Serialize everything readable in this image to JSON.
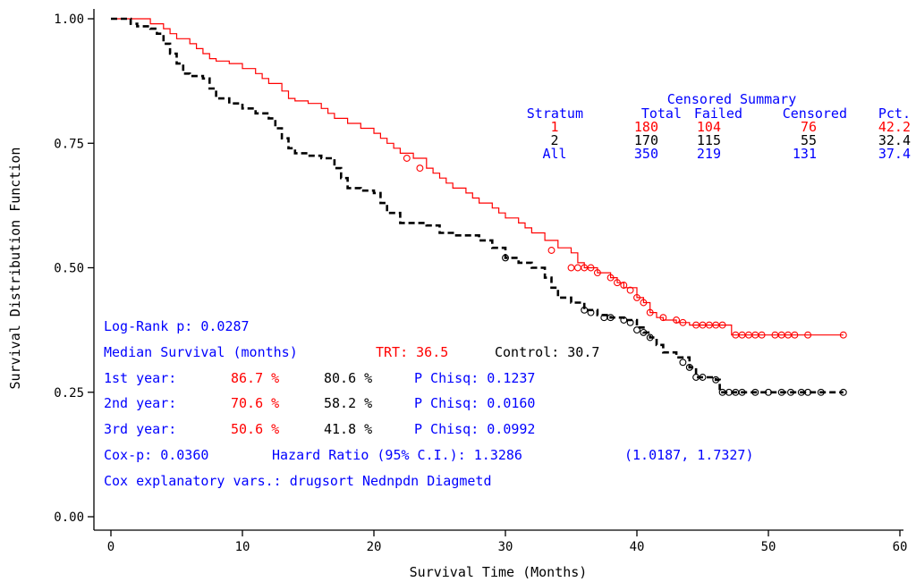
{
  "colors": {
    "trt": "#ff0000",
    "control": "#000000",
    "text_blue": "#0000ff",
    "axis": "#000000"
  },
  "chart_data": {
    "type": "line",
    "xlabel": "Survival Time (Months)",
    "ylabel": "Survival Distribution Function",
    "xlim": [
      0,
      60
    ],
    "ylim": [
      0,
      1
    ],
    "x_ticks": [
      0,
      10,
      20,
      30,
      40,
      50,
      60
    ],
    "y_ticks": [
      "0.00",
      "0.25",
      "0.50",
      "0.75",
      "1.00"
    ],
    "y_tick_values": [
      0,
      0.25,
      0.5,
      0.75,
      1.0
    ],
    "grid": false,
    "series": [
      {
        "stratum": "1",
        "color": "#ff0000",
        "dash": false,
        "steps": [
          [
            0,
            1.0
          ],
          [
            2.5,
            1.0
          ],
          [
            3,
            0.99
          ],
          [
            4,
            0.98
          ],
          [
            4.5,
            0.97
          ],
          [
            5,
            0.96
          ],
          [
            6,
            0.95
          ],
          [
            6.5,
            0.94
          ],
          [
            7,
            0.93
          ],
          [
            7.5,
            0.92
          ],
          [
            8,
            0.915
          ],
          [
            9,
            0.91
          ],
          [
            10,
            0.9
          ],
          [
            11,
            0.89
          ],
          [
            11.5,
            0.88
          ],
          [
            12,
            0.87
          ],
          [
            13,
            0.855
          ],
          [
            13.5,
            0.84
          ],
          [
            14,
            0.835
          ],
          [
            15,
            0.83
          ],
          [
            16,
            0.82
          ],
          [
            16.5,
            0.81
          ],
          [
            17,
            0.8
          ],
          [
            18,
            0.79
          ],
          [
            19,
            0.78
          ],
          [
            20,
            0.77
          ],
          [
            20.5,
            0.76
          ],
          [
            21,
            0.75
          ],
          [
            21.5,
            0.74
          ],
          [
            22,
            0.73
          ],
          [
            23,
            0.72
          ],
          [
            24,
            0.7
          ],
          [
            24.5,
            0.69
          ],
          [
            25,
            0.68
          ],
          [
            25.5,
            0.67
          ],
          [
            26,
            0.66
          ],
          [
            27,
            0.65
          ],
          [
            27.5,
            0.64
          ],
          [
            28,
            0.63
          ],
          [
            29,
            0.62
          ],
          [
            29.5,
            0.61
          ],
          [
            30,
            0.6
          ],
          [
            31,
            0.59
          ],
          [
            31.5,
            0.58
          ],
          [
            32,
            0.57
          ],
          [
            33,
            0.555
          ],
          [
            34,
            0.54
          ],
          [
            35,
            0.53
          ],
          [
            35.5,
            0.51
          ],
          [
            36,
            0.5
          ],
          [
            37,
            0.49
          ],
          [
            38,
            0.48
          ],
          [
            38.5,
            0.47
          ],
          [
            39,
            0.46
          ],
          [
            40,
            0.44
          ],
          [
            40.5,
            0.43
          ],
          [
            41,
            0.41
          ],
          [
            41.5,
            0.4
          ],
          [
            42,
            0.395
          ],
          [
            43,
            0.39
          ],
          [
            44,
            0.385
          ],
          [
            45,
            0.385
          ],
          [
            46,
            0.385
          ],
          [
            47,
            0.385
          ],
          [
            47.2,
            0.365
          ],
          [
            55.7,
            0.365
          ]
        ],
        "censored": [
          [
            22.5,
            0.72
          ],
          [
            23.5,
            0.7
          ],
          [
            33.5,
            0.535
          ],
          [
            35,
            0.5
          ],
          [
            35.5,
            0.5
          ],
          [
            36,
            0.5
          ],
          [
            36.5,
            0.5
          ],
          [
            37,
            0.49
          ],
          [
            38,
            0.48
          ],
          [
            38.5,
            0.47
          ],
          [
            39,
            0.465
          ],
          [
            39.5,
            0.455
          ],
          [
            40,
            0.44
          ],
          [
            40.5,
            0.43
          ],
          [
            41,
            0.41
          ],
          [
            42,
            0.4
          ],
          [
            43,
            0.395
          ],
          [
            43.5,
            0.39
          ],
          [
            44.5,
            0.385
          ],
          [
            45,
            0.385
          ],
          [
            45.5,
            0.385
          ],
          [
            46,
            0.385
          ],
          [
            46.5,
            0.385
          ],
          [
            47.5,
            0.365
          ],
          [
            48,
            0.365
          ],
          [
            48.5,
            0.365
          ],
          [
            49,
            0.365
          ],
          [
            49.5,
            0.365
          ],
          [
            50.5,
            0.365
          ],
          [
            51,
            0.365
          ],
          [
            51.5,
            0.365
          ],
          [
            52,
            0.365
          ],
          [
            53,
            0.365
          ],
          [
            55.7,
            0.365
          ]
        ]
      },
      {
        "stratum": "2",
        "color": "#000000",
        "dash": true,
        "steps": [
          [
            0,
            1.0
          ],
          [
            1,
            1.0
          ],
          [
            1.5,
            0.99
          ],
          [
            2,
            0.985
          ],
          [
            3,
            0.98
          ],
          [
            3.5,
            0.97
          ],
          [
            4,
            0.95
          ],
          [
            4.5,
            0.93
          ],
          [
            5,
            0.91
          ],
          [
            5.5,
            0.89
          ],
          [
            6,
            0.885
          ],
          [
            7,
            0.88
          ],
          [
            7.5,
            0.86
          ],
          [
            8,
            0.84
          ],
          [
            9,
            0.83
          ],
          [
            10,
            0.82
          ],
          [
            11,
            0.81
          ],
          [
            12,
            0.8
          ],
          [
            12.5,
            0.78
          ],
          [
            13,
            0.76
          ],
          [
            13.5,
            0.74
          ],
          [
            14,
            0.73
          ],
          [
            15,
            0.725
          ],
          [
            16,
            0.72
          ],
          [
            17,
            0.7
          ],
          [
            17.5,
            0.68
          ],
          [
            18,
            0.66
          ],
          [
            19,
            0.655
          ],
          [
            20,
            0.65
          ],
          [
            20.5,
            0.63
          ],
          [
            21,
            0.61
          ],
          [
            22,
            0.59
          ],
          [
            24,
            0.585
          ],
          [
            25,
            0.57
          ],
          [
            26,
            0.565
          ],
          [
            28,
            0.555
          ],
          [
            29,
            0.54
          ],
          [
            30,
            0.52
          ],
          [
            31,
            0.51
          ],
          [
            32,
            0.5
          ],
          [
            33,
            0.48
          ],
          [
            33.5,
            0.46
          ],
          [
            34,
            0.44
          ],
          [
            35,
            0.43
          ],
          [
            36,
            0.415
          ],
          [
            37,
            0.405
          ],
          [
            38,
            0.4
          ],
          [
            39,
            0.395
          ],
          [
            40,
            0.38
          ],
          [
            40.5,
            0.37
          ],
          [
            41,
            0.36
          ],
          [
            41.5,
            0.345
          ],
          [
            42,
            0.33
          ],
          [
            43,
            0.32
          ],
          [
            44,
            0.3
          ],
          [
            44.5,
            0.28
          ],
          [
            46,
            0.275
          ],
          [
            46.3,
            0.25
          ],
          [
            55.7,
            0.25
          ]
        ],
        "censored": [
          [
            30,
            0.52
          ],
          [
            36,
            0.415
          ],
          [
            36.5,
            0.41
          ],
          [
            37.5,
            0.4
          ],
          [
            38,
            0.4
          ],
          [
            39,
            0.395
          ],
          [
            39.5,
            0.39
          ],
          [
            40,
            0.375
          ],
          [
            40.5,
            0.37
          ],
          [
            41,
            0.36
          ],
          [
            43.5,
            0.31
          ],
          [
            44,
            0.3
          ],
          [
            44.5,
            0.28
          ],
          [
            45,
            0.28
          ],
          [
            46,
            0.275
          ],
          [
            46.5,
            0.25
          ],
          [
            47,
            0.25
          ],
          [
            47.5,
            0.25
          ],
          [
            48,
            0.25
          ],
          [
            49,
            0.25
          ],
          [
            50,
            0.25
          ],
          [
            51,
            0.25
          ],
          [
            51.7,
            0.25
          ],
          [
            52.5,
            0.25
          ],
          [
            53,
            0.25
          ],
          [
            54,
            0.25
          ],
          [
            55.7,
            0.25
          ]
        ]
      }
    ],
    "censored_summary": {
      "title": "Censored Summary",
      "headers": [
        "Stratum",
        "Total",
        "Failed",
        "Censored",
        "Pct."
      ],
      "rows": [
        {
          "cells": [
            "1",
            "180",
            "104",
            "76",
            "42.2"
          ],
          "color": "#ff0000"
        },
        {
          "cells": [
            "2",
            "170",
            "115",
            "55",
            "32.4"
          ],
          "color": "#000000"
        },
        {
          "cells": [
            "All",
            "350",
            "219",
            "131",
            "37.4"
          ],
          "color": "#0000ff"
        }
      ]
    },
    "annotations": {
      "logrank": "Log-Rank p: 0.0287",
      "median_label": "Median Survival (months)",
      "median_trt": "TRT: 36.5",
      "median_control": "Control: 30.7",
      "years": [
        {
          "label": "1st year:",
          "trt": "86.7 %",
          "control": "80.6 %",
          "p": "P Chisq: 0.1237"
        },
        {
          "label": "2nd year:",
          "trt": "70.6 %",
          "control": "58.2 %",
          "p": "P Chisq: 0.0160"
        },
        {
          "label": "3rd year:",
          "trt": "50.6 %",
          "control": "41.8 %",
          "p": "P Chisq: 0.0992"
        }
      ],
      "cox_p": "Cox-p: 0.0360",
      "hazard": "Hazard Ratio (95% C.I.): 1.3286",
      "ci": "(1.0187, 1.7327)",
      "cox_vars": "Cox explanatory vars.: drugsort Nednpdn Diagmetd"
    }
  }
}
